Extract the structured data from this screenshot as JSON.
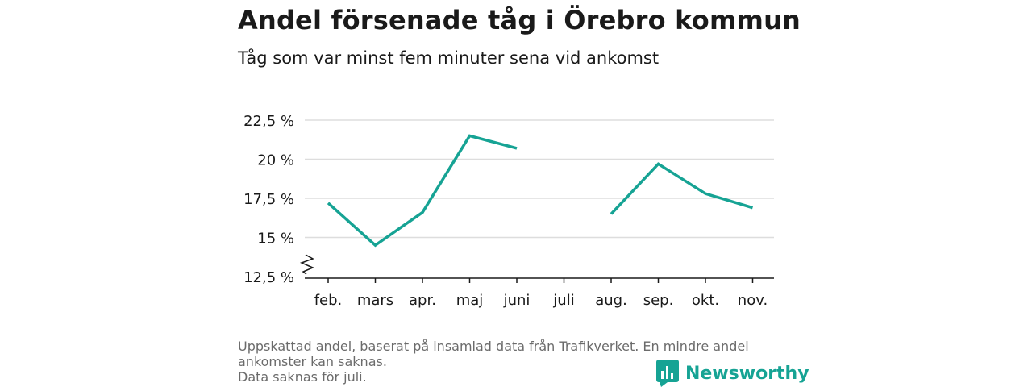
{
  "title": "Andel försenade tåg i Örebro kommun",
  "subtitle": "Tåg som var minst fem minuter sena vid ankomst",
  "footer": {
    "line1": "Uppskattad andel, baserat på insamlad data från Trafikverket. En mindre andel",
    "line2": "ankomster kan saknas.",
    "line3": "Data saknas för juli."
  },
  "brand": {
    "name": "Newsworthy",
    "color": "#16a394"
  },
  "colors": {
    "line": "#16a394",
    "grid": "#dddddd",
    "axis": "#1a1a1a"
  },
  "chart_data": {
    "type": "line",
    "categories": [
      "feb.",
      "mars",
      "apr.",
      "maj",
      "juni",
      "juli",
      "aug.",
      "sep.",
      "okt.",
      "nov."
    ],
    "values": [
      17.2,
      14.5,
      16.6,
      21.5,
      20.7,
      null,
      16.5,
      19.7,
      17.8,
      16.9
    ],
    "y_ticks": [
      12.5,
      15,
      17.5,
      20,
      22.5
    ],
    "y_tick_labels": [
      "12,5 %",
      "15 %",
      "17,5 %",
      "20 %",
      "22,5 %"
    ],
    "ylim": [
      12.5,
      22.5
    ],
    "grid": true,
    "axis_break": true
  }
}
